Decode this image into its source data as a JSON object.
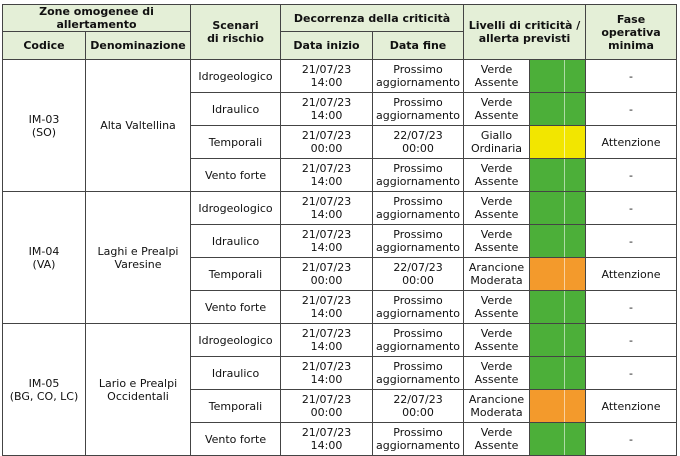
{
  "headers": {
    "zone_group": "Zone omogenee di allertamento",
    "codice": "Codice",
    "denominazione": "Denominazione",
    "scenari_l1": "Scenari",
    "scenari_l2": "di rischio",
    "decorrenza": "Decorrenza della criticità",
    "data_inizio": "Data inizio",
    "data_fine": "Data fine",
    "livelli_l1": "Livelli di criticità /",
    "livelli_l2": "allerta previsti",
    "fase_l1": "Fase",
    "fase_l2": "operativa",
    "fase_l3": "minima"
  },
  "colors": {
    "verde": "#4caf39",
    "giallo": "#f2e600",
    "arancione": "#f39a2c"
  },
  "zones": [
    {
      "code_l1": "IM-03",
      "code_l2": "(SO)",
      "name_l1": "Alta Valtellina",
      "name_l2": "",
      "rows": [
        {
          "scenario": "Idrogeologico",
          "start_date": "21/07/23",
          "start_time": "14:00",
          "end_l1": "Prossimo",
          "end_l2": "aggiornamento",
          "level_l1": "Verde",
          "level_l2": "Assente",
          "level_color": "verde",
          "fase": "-"
        },
        {
          "scenario": "Idraulico",
          "start_date": "21/07/23",
          "start_time": "14:00",
          "end_l1": "Prossimo",
          "end_l2": "aggiornamento",
          "level_l1": "Verde",
          "level_l2": "Assente",
          "level_color": "verde",
          "fase": "-"
        },
        {
          "scenario": "Temporali",
          "start_date": "21/07/23",
          "start_time": "00:00",
          "end_l1": "22/07/23",
          "end_l2": "00:00",
          "level_l1": "Giallo",
          "level_l2": "Ordinaria",
          "level_color": "giallo",
          "fase": "Attenzione"
        },
        {
          "scenario": "Vento forte",
          "start_date": "21/07/23",
          "start_time": "14:00",
          "end_l1": "Prossimo",
          "end_l2": "aggiornamento",
          "level_l1": "Verde",
          "level_l2": "Assente",
          "level_color": "verde",
          "fase": "-"
        }
      ]
    },
    {
      "code_l1": "IM-04",
      "code_l2": "(VA)",
      "name_l1": "Laghi e Prealpi",
      "name_l2": "Varesine",
      "rows": [
        {
          "scenario": "Idrogeologico",
          "start_date": "21/07/23",
          "start_time": "14:00",
          "end_l1": "Prossimo",
          "end_l2": "aggiornamento",
          "level_l1": "Verde",
          "level_l2": "Assente",
          "level_color": "verde",
          "fase": "-"
        },
        {
          "scenario": "Idraulico",
          "start_date": "21/07/23",
          "start_time": "14:00",
          "end_l1": "Prossimo",
          "end_l2": "aggiornamento",
          "level_l1": "Verde",
          "level_l2": "Assente",
          "level_color": "verde",
          "fase": "-"
        },
        {
          "scenario": "Temporali",
          "start_date": "21/07/23",
          "start_time": "00:00",
          "end_l1": "22/07/23",
          "end_l2": "00:00",
          "level_l1": "Arancione",
          "level_l2": "Moderata",
          "level_color": "arancione",
          "fase": "Attenzione"
        },
        {
          "scenario": "Vento forte",
          "start_date": "21/07/23",
          "start_time": "14:00",
          "end_l1": "Prossimo",
          "end_l2": "aggiornamento",
          "level_l1": "Verde",
          "level_l2": "Assente",
          "level_color": "verde",
          "fase": "-"
        }
      ]
    },
    {
      "code_l1": "IM-05",
      "code_l2": "(BG, CO, LC)",
      "name_l1": "Lario e Prealpi",
      "name_l2": "Occidentali",
      "rows": [
        {
          "scenario": "Idrogeologico",
          "start_date": "21/07/23",
          "start_time": "14:00",
          "end_l1": "Prossimo",
          "end_l2": "aggiornamento",
          "level_l1": "Verde",
          "level_l2": "Assente",
          "level_color": "verde",
          "fase": "-"
        },
        {
          "scenario": "Idraulico",
          "start_date": "21/07/23",
          "start_time": "14:00",
          "end_l1": "Prossimo",
          "end_l2": "aggiornamento",
          "level_l1": "Verde",
          "level_l2": "Assente",
          "level_color": "verde",
          "fase": "-"
        },
        {
          "scenario": "Temporali",
          "start_date": "21/07/23",
          "start_time": "00:00",
          "end_l1": "22/07/23",
          "end_l2": "00:00",
          "level_l1": "Arancione",
          "level_l2": "Moderata",
          "level_color": "arancione",
          "fase": "Attenzione"
        },
        {
          "scenario": "Vento forte",
          "start_date": "21/07/23",
          "start_time": "14:00",
          "end_l1": "Prossimo",
          "end_l2": "aggiornamento",
          "level_l1": "Verde",
          "level_l2": "Assente",
          "level_color": "verde",
          "fase": "-"
        }
      ]
    }
  ]
}
